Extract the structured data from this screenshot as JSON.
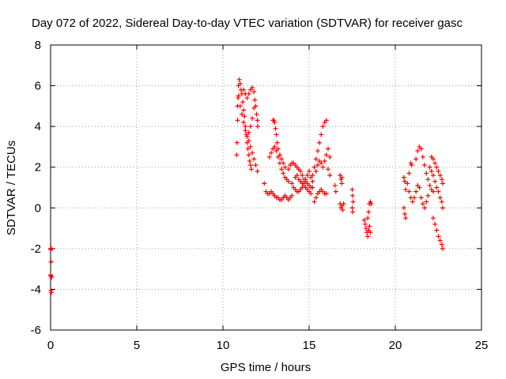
{
  "chart_data": {
    "type": "scatter",
    "title": "Day 072 of 2022, Sidereal Day-to-day VTEC variation (SDTVAR) for receiver gasc",
    "xlabel": "GPS time / hours",
    "ylabel": "SDTVAR / TECUs",
    "xlim": [
      0,
      25
    ],
    "ylim": [
      -6,
      8
    ],
    "x_ticks": [
      0,
      5,
      10,
      15,
      20,
      25
    ],
    "y_ticks": [
      -6,
      -4,
      -2,
      0,
      2,
      4,
      6,
      8
    ],
    "x_tick_labels": [
      "0",
      "5",
      "10",
      "15",
      "20",
      "25"
    ],
    "y_tick_labels": [
      "-6",
      "-4",
      "-2",
      "0",
      "2",
      "4",
      "6",
      "8"
    ],
    "grid": true,
    "marker": "+",
    "color": "#ff0000",
    "series": [
      {
        "name": "SDTVAR",
        "points": [
          [
            0.0,
            -2.0
          ],
          [
            0.02,
            -2.05
          ],
          [
            0.05,
            -2.0
          ],
          [
            0.03,
            -2.65
          ],
          [
            0.0,
            -3.3
          ],
          [
            0.03,
            -3.35
          ],
          [
            0.06,
            -3.4
          ],
          [
            0.02,
            -4.05
          ],
          [
            0.05,
            -4.15
          ],
          [
            10.8,
            2.6
          ],
          [
            10.82,
            3.2
          ],
          [
            10.85,
            4.3
          ],
          [
            10.85,
            5.0
          ],
          [
            10.88,
            5.4
          ],
          [
            10.9,
            6.0
          ],
          [
            10.95,
            6.3
          ],
          [
            11.0,
            6.1
          ],
          [
            11.05,
            5.8
          ],
          [
            11.1,
            5.6
          ],
          [
            11.15,
            5.2
          ],
          [
            11.2,
            4.8
          ],
          [
            11.25,
            4.5
          ],
          [
            11.3,
            4.0
          ],
          [
            11.35,
            3.6
          ],
          [
            11.4,
            3.2
          ],
          [
            11.45,
            2.9
          ],
          [
            11.5,
            2.6
          ],
          [
            11.55,
            2.3
          ],
          [
            11.6,
            2.1
          ],
          [
            11.65,
            1.9
          ],
          [
            10.9,
            5.5
          ],
          [
            11.0,
            5.0
          ],
          [
            11.1,
            4.6
          ],
          [
            11.2,
            4.2
          ],
          [
            11.3,
            3.8
          ],
          [
            11.4,
            3.5
          ],
          [
            11.5,
            3.3
          ],
          [
            11.6,
            3.0
          ],
          [
            11.7,
            2.7
          ],
          [
            11.8,
            2.4
          ],
          [
            11.9,
            2.1
          ],
          [
            12.0,
            1.8
          ],
          [
            11.2,
            5.8
          ],
          [
            11.3,
            5.6
          ],
          [
            11.4,
            5.4
          ],
          [
            11.5,
            5.6
          ],
          [
            11.6,
            5.8
          ],
          [
            11.7,
            5.9
          ],
          [
            11.8,
            5.7
          ],
          [
            11.85,
            5.3
          ],
          [
            11.9,
            5.0
          ],
          [
            11.95,
            4.6
          ],
          [
            12.0,
            4.3
          ],
          [
            12.02,
            4.0
          ],
          [
            11.8,
            4.9
          ],
          [
            11.7,
            4.4
          ],
          [
            11.6,
            4.0
          ],
          [
            11.5,
            3.7
          ],
          [
            12.4,
            1.2
          ],
          [
            12.5,
            0.8
          ],
          [
            12.6,
            0.7
          ],
          [
            12.7,
            0.7
          ],
          [
            12.8,
            0.8
          ],
          [
            12.9,
            0.7
          ],
          [
            13.0,
            0.6
          ],
          [
            12.9,
            4.3
          ],
          [
            12.95,
            4.3
          ],
          [
            13.0,
            4.2
          ],
          [
            13.05,
            3.9
          ],
          [
            13.1,
            3.6
          ],
          [
            13.15,
            3.2
          ],
          [
            13.2,
            2.9
          ],
          [
            13.3,
            2.6
          ],
          [
            13.4,
            2.4
          ],
          [
            13.5,
            2.2
          ],
          [
            13.6,
            2.0
          ],
          [
            12.7,
            2.5
          ],
          [
            12.8,
            2.7
          ],
          [
            12.9,
            2.9
          ],
          [
            13.0,
            3.0
          ],
          [
            13.1,
            2.8
          ],
          [
            13.2,
            2.5
          ],
          [
            13.3,
            2.2
          ],
          [
            13.4,
            1.9
          ],
          [
            13.5,
            1.7
          ],
          [
            13.6,
            1.5
          ],
          [
            13.7,
            1.4
          ],
          [
            13.8,
            1.3
          ],
          [
            13.0,
            0.6
          ],
          [
            13.1,
            0.5
          ],
          [
            13.2,
            0.5
          ],
          [
            13.3,
            0.4
          ],
          [
            13.4,
            0.4
          ],
          [
            13.5,
            0.5
          ],
          [
            13.6,
            0.6
          ],
          [
            13.7,
            0.5
          ],
          [
            13.8,
            0.4
          ],
          [
            13.9,
            0.5
          ],
          [
            14.0,
            0.6
          ],
          [
            13.8,
            1.9
          ],
          [
            13.9,
            2.1
          ],
          [
            14.0,
            2.2
          ],
          [
            14.1,
            2.2
          ],
          [
            14.2,
            2.1
          ],
          [
            14.3,
            2.0
          ],
          [
            14.4,
            1.9
          ],
          [
            14.5,
            1.8
          ],
          [
            14.6,
            1.6
          ],
          [
            14.7,
            1.4
          ],
          [
            14.8,
            1.3
          ],
          [
            14.9,
            1.2
          ],
          [
            15.0,
            1.1
          ],
          [
            15.1,
            1.0
          ],
          [
            15.2,
            1.0
          ],
          [
            14.0,
            1.2
          ],
          [
            14.1,
            1.0
          ],
          [
            14.2,
            0.9
          ],
          [
            14.3,
            0.8
          ],
          [
            14.4,
            0.8
          ],
          [
            14.5,
            0.9
          ],
          [
            14.6,
            1.0
          ],
          [
            14.7,
            1.2
          ],
          [
            14.8,
            1.4
          ],
          [
            14.9,
            1.6
          ],
          [
            15.0,
            1.8
          ],
          [
            15.1,
            1.5
          ],
          [
            15.2,
            1.3
          ],
          [
            14.2,
            1.5
          ],
          [
            14.3,
            1.6
          ],
          [
            14.4,
            1.4
          ],
          [
            14.5,
            1.3
          ],
          [
            14.6,
            1.2
          ],
          [
            14.7,
            1.1
          ],
          [
            14.8,
            1.0
          ],
          [
            14.9,
            0.9
          ],
          [
            15.0,
            0.8
          ],
          [
            15.1,
            0.7
          ],
          [
            15.3,
            0.3
          ],
          [
            15.4,
            0.5
          ],
          [
            15.5,
            0.7
          ],
          [
            15.6,
            0.8
          ],
          [
            15.7,
            0.9
          ],
          [
            15.8,
            0.8
          ],
          [
            15.9,
            0.7
          ],
          [
            16.0,
            0.7
          ],
          [
            15.2,
            1.6
          ],
          [
            15.3,
            2.0
          ],
          [
            15.4,
            2.4
          ],
          [
            15.5,
            2.8
          ],
          [
            15.6,
            3.2
          ],
          [
            15.7,
            3.6
          ],
          [
            15.8,
            4.0
          ],
          [
            15.9,
            4.2
          ],
          [
            16.0,
            4.3
          ],
          [
            15.4,
            1.8
          ],
          [
            15.5,
            2.1
          ],
          [
            15.6,
            2.3
          ],
          [
            15.7,
            2.2
          ],
          [
            15.8,
            2.0
          ],
          [
            15.9,
            2.3
          ],
          [
            16.0,
            2.6
          ],
          [
            16.1,
            2.9
          ],
          [
            16.2,
            2.5
          ],
          [
            16.1,
            1.9
          ],
          [
            16.2,
            1.6
          ],
          [
            16.5,
            1.1
          ],
          [
            16.55,
            0.8
          ],
          [
            16.8,
            1.6
          ],
          [
            16.85,
            1.4
          ],
          [
            16.9,
            1.5
          ],
          [
            16.9,
            1.2
          ],
          [
            16.8,
            0.2
          ],
          [
            16.85,
            0.0
          ],
          [
            16.9,
            0.1
          ],
          [
            17.0,
            0.2
          ],
          [
            16.95,
            -0.1
          ],
          [
            17.5,
            0.9
          ],
          [
            17.52,
            0.6
          ],
          [
            17.55,
            0.3
          ],
          [
            17.5,
            0.0
          ],
          [
            17.53,
            -0.2
          ],
          [
            18.2,
            -0.6
          ],
          [
            18.25,
            -0.8
          ],
          [
            18.3,
            -1.0
          ],
          [
            18.35,
            -1.2
          ],
          [
            18.4,
            -1.4
          ],
          [
            18.45,
            -1.1
          ],
          [
            18.5,
            -0.9
          ],
          [
            18.55,
            -1.2
          ],
          [
            18.4,
            -0.5
          ],
          [
            18.5,
            0.2
          ],
          [
            18.55,
            0.3
          ],
          [
            18.6,
            0.2
          ],
          [
            18.45,
            -0.2
          ],
          [
            20.5,
            0.0
          ],
          [
            20.55,
            -0.3
          ],
          [
            20.6,
            -0.5
          ],
          [
            20.5,
            1.5
          ],
          [
            20.55,
            1.3
          ],
          [
            20.6,
            0.9
          ],
          [
            20.7,
            1.2
          ],
          [
            20.8,
            1.7
          ],
          [
            20.9,
            2.2
          ],
          [
            20.95,
            2.1
          ],
          [
            20.8,
            0.8
          ],
          [
            20.9,
            0.5
          ],
          [
            21.0,
            0.3
          ],
          [
            21.1,
            0.5
          ],
          [
            21.2,
            0.8
          ],
          [
            21.3,
            1.1
          ],
          [
            21.4,
            1.0
          ],
          [
            21.2,
            2.4
          ],
          [
            21.3,
            2.8
          ],
          [
            21.4,
            3.0
          ],
          [
            21.5,
            2.9
          ],
          [
            21.6,
            2.5
          ],
          [
            21.7,
            2.1
          ],
          [
            21.8,
            1.7
          ],
          [
            21.9,
            1.4
          ],
          [
            22.0,
            1.1
          ],
          [
            22.1,
            0.9
          ],
          [
            22.2,
            0.8
          ],
          [
            21.5,
            0.5
          ],
          [
            21.6,
            0.2
          ],
          [
            21.7,
            0.0
          ],
          [
            21.8,
            0.3
          ],
          [
            21.9,
            0.6
          ],
          [
            22.1,
            2.5
          ],
          [
            22.2,
            2.4
          ],
          [
            22.3,
            2.2
          ],
          [
            22.4,
            2.0
          ],
          [
            22.5,
            1.8
          ],
          [
            22.6,
            1.6
          ],
          [
            22.7,
            1.4
          ],
          [
            22.75,
            1.2
          ],
          [
            22.0,
            2.0
          ],
          [
            22.1,
            1.8
          ],
          [
            22.2,
            1.6
          ],
          [
            22.3,
            1.3
          ],
          [
            22.4,
            1.0
          ],
          [
            22.5,
            0.8
          ],
          [
            22.6,
            0.5
          ],
          [
            22.7,
            0.3
          ],
          [
            22.75,
            0.0
          ],
          [
            22.2,
            -0.5
          ],
          [
            22.3,
            -0.8
          ],
          [
            22.4,
            -1.1
          ],
          [
            22.5,
            -1.4
          ],
          [
            22.6,
            -1.6
          ],
          [
            22.7,
            -1.8
          ],
          [
            22.75,
            -2.0
          ]
        ]
      }
    ]
  }
}
